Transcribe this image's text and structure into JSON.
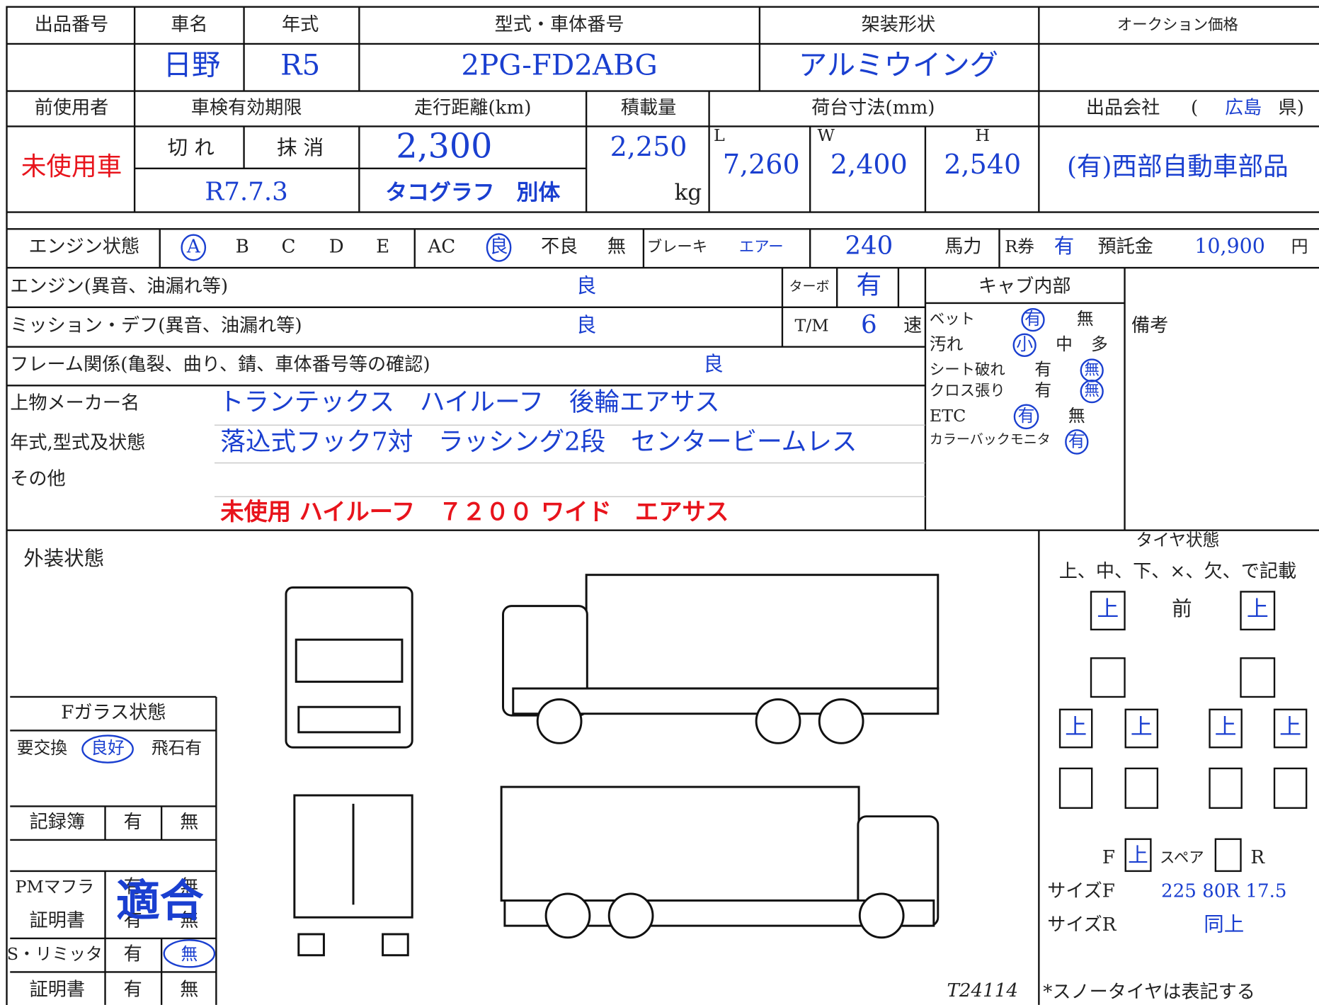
{
  "header": {
    "lot_no": "出品番号",
    "maker_label": "車名",
    "year_label": "年式",
    "model_label": "型式・車体番号",
    "body_label": "架装形状",
    "price_label": "オークション価格",
    "maker": "日野",
    "year": "R5",
    "model": "2PG-FD2ABG",
    "body": "アルミウイング"
  },
  "row2": {
    "previous_user": "前使用者",
    "inspection": "車検有効期限",
    "mileage_label": "走行距離(km)",
    "load_label": "積載量",
    "bed_label": "荷台寸法(mm)",
    "seller_label": "出品会社",
    "pref_open": "(",
    "prefecture": "広島",
    "pref_close": "県)"
  },
  "row3": {
    "user_type": "未使用車",
    "expired": "切 れ",
    "cancelled": "抹 消",
    "inspection_date": "R7.7.3",
    "mileage": "2,300",
    "tacho": "タコグラフ　別体",
    "load": "2,250",
    "load_unit": "kg",
    "l_label": "L",
    "length": "7,260",
    "w_label": "W",
    "width": "2,400",
    "h_label": "H",
    "height": "2,540",
    "seller": "(有)西部自動車部品"
  },
  "engine_row": {
    "label": "エンジン状態",
    "grades": [
      "A",
      "B",
      "C",
      "D",
      "E"
    ],
    "ac": "AC",
    "ac_good": "良",
    "ac_bad": "不良",
    "ac_none": "無",
    "brake": "ブレーキ",
    "brake_type": "エアー",
    "hp": "240",
    "hp_unit": "馬力",
    "r_ticket": "R券",
    "r_ticket_value": "有",
    "deposit_label": "預託金",
    "deposit": "10,900",
    "yen": "円"
  },
  "condition": {
    "engine_label": "エンジン(異音、油漏れ等)",
    "engine": "良",
    "turbo_label": "ターボ",
    "turbo": "有",
    "cab_label": "キャブ内部",
    "mission_label": "ミッション・デフ(異音、油漏れ等)",
    "mission": "良",
    "tm": "T/M",
    "speeds": "6",
    "speed_unit": "速",
    "remarks": "備考",
    "frame_label": "フレーム関係(亀裂、曲り、錆、車体番号等の確認)",
    "frame": "良"
  },
  "cab": {
    "bed": "ベット",
    "bed_yes": "有",
    "bed_no": "無",
    "dirt": "汚れ",
    "dirt_s": "小",
    "dirt_m": "中",
    "dirt_l": "多",
    "seat": "シート破れ",
    "seat_yes": "有",
    "seat_no": "無",
    "cloth": "クロス張り",
    "cloth_yes": "有",
    "cloth_no": "無",
    "etc": "ETC",
    "etc_yes": "有",
    "etc_no": "無",
    "monitor": "カラーバックモニタ",
    "monitor_yes": "有"
  },
  "body_info": {
    "maker_label": "上物メーカー名",
    "maker": "トランテックス　ハイルーフ　後輪エアサス",
    "spec_label": "年式,型式及状態",
    "spec": "落込式フック7対　ラッシング2段　センタービームレス",
    "other_label": "その他",
    "note": "未使用 ハイルーフ　７２００ ワイド　エアサス"
  },
  "exterior": {
    "label": "外装状態",
    "code": "T24114"
  },
  "glass": {
    "title": "Fガラス状態",
    "replace": "要交換",
    "good": "良好",
    "chip": "飛石有",
    "records": "記録簿",
    "records_yes": "有",
    "records_no": "無",
    "pm": "PMマフラ",
    "pm_yes": "有",
    "pm_no": "無",
    "pm_cert": "証明書",
    "pm_cert_yes": "有",
    "pm_cert_no": "無",
    "pm_stamp": "適合",
    "limiter": "S・リミッタ",
    "limiter_yes": "有",
    "limiter_no": "無",
    "limiter_cert": "証明書",
    "limiter_cert_yes": "有",
    "limiter_cert_no": "無"
  },
  "tires": {
    "title": "タイヤ状態",
    "legend": "上、中、下、×、欠、で記載",
    "front_word": "前",
    "front": [
      "上",
      "上"
    ],
    "middle": [
      "上",
      "上",
      "上",
      "上"
    ],
    "f": "F",
    "spare_f": "上",
    "spare": "スペア",
    "r": "R",
    "size_f_label": "サイズF",
    "size_f": "225 80R 17.5",
    "size_r_label": "サイズR",
    "size_r": "同上",
    "note": "*スノータイヤは表記する"
  }
}
